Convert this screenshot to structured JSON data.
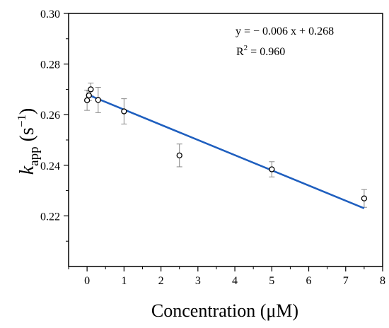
{
  "chart_data": {
    "type": "scatter",
    "xlabel": "Concentration (μM)",
    "ylabel": {
      "main": "k",
      "sub": "app",
      "unit_open": " (s",
      "unit_sup": "−1",
      "unit_close": ")"
    },
    "xlim": [
      -0.5,
      8
    ],
    "ylim": [
      0.2,
      0.3
    ],
    "xticks": [
      0,
      1,
      2,
      3,
      4,
      5,
      6,
      7,
      8
    ],
    "yticks": [
      0.22,
      0.24,
      0.26,
      0.28,
      0.3
    ],
    "ytick_labels": [
      "0.22",
      "0.24",
      "0.26",
      "0.28",
      "0.30"
    ],
    "series": [
      {
        "markers": "open-circle",
        "x": [
          0,
          0.05,
          0.1,
          0.3,
          1,
          2.5,
          5,
          7.5
        ],
        "y": [
          0.2657,
          0.2676,
          0.27,
          0.2658,
          0.2613,
          0.2439,
          0.2384,
          0.2269
        ],
        "error": [
          0.004,
          0.002,
          0.0025,
          0.005,
          0.005,
          0.0045,
          0.003,
          0.0035
        ]
      }
    ],
    "fit": {
      "slope": -0.006,
      "intercept": 0.268,
      "x_range": [
        0,
        7.5
      ],
      "color": "#1f5fbf"
    },
    "annotations": {
      "equation": "y = − 0.006 x + 0.268",
      "r2_prefix": "R",
      "r2_sup": "2",
      "r2_suffix": " = 0.960"
    }
  }
}
